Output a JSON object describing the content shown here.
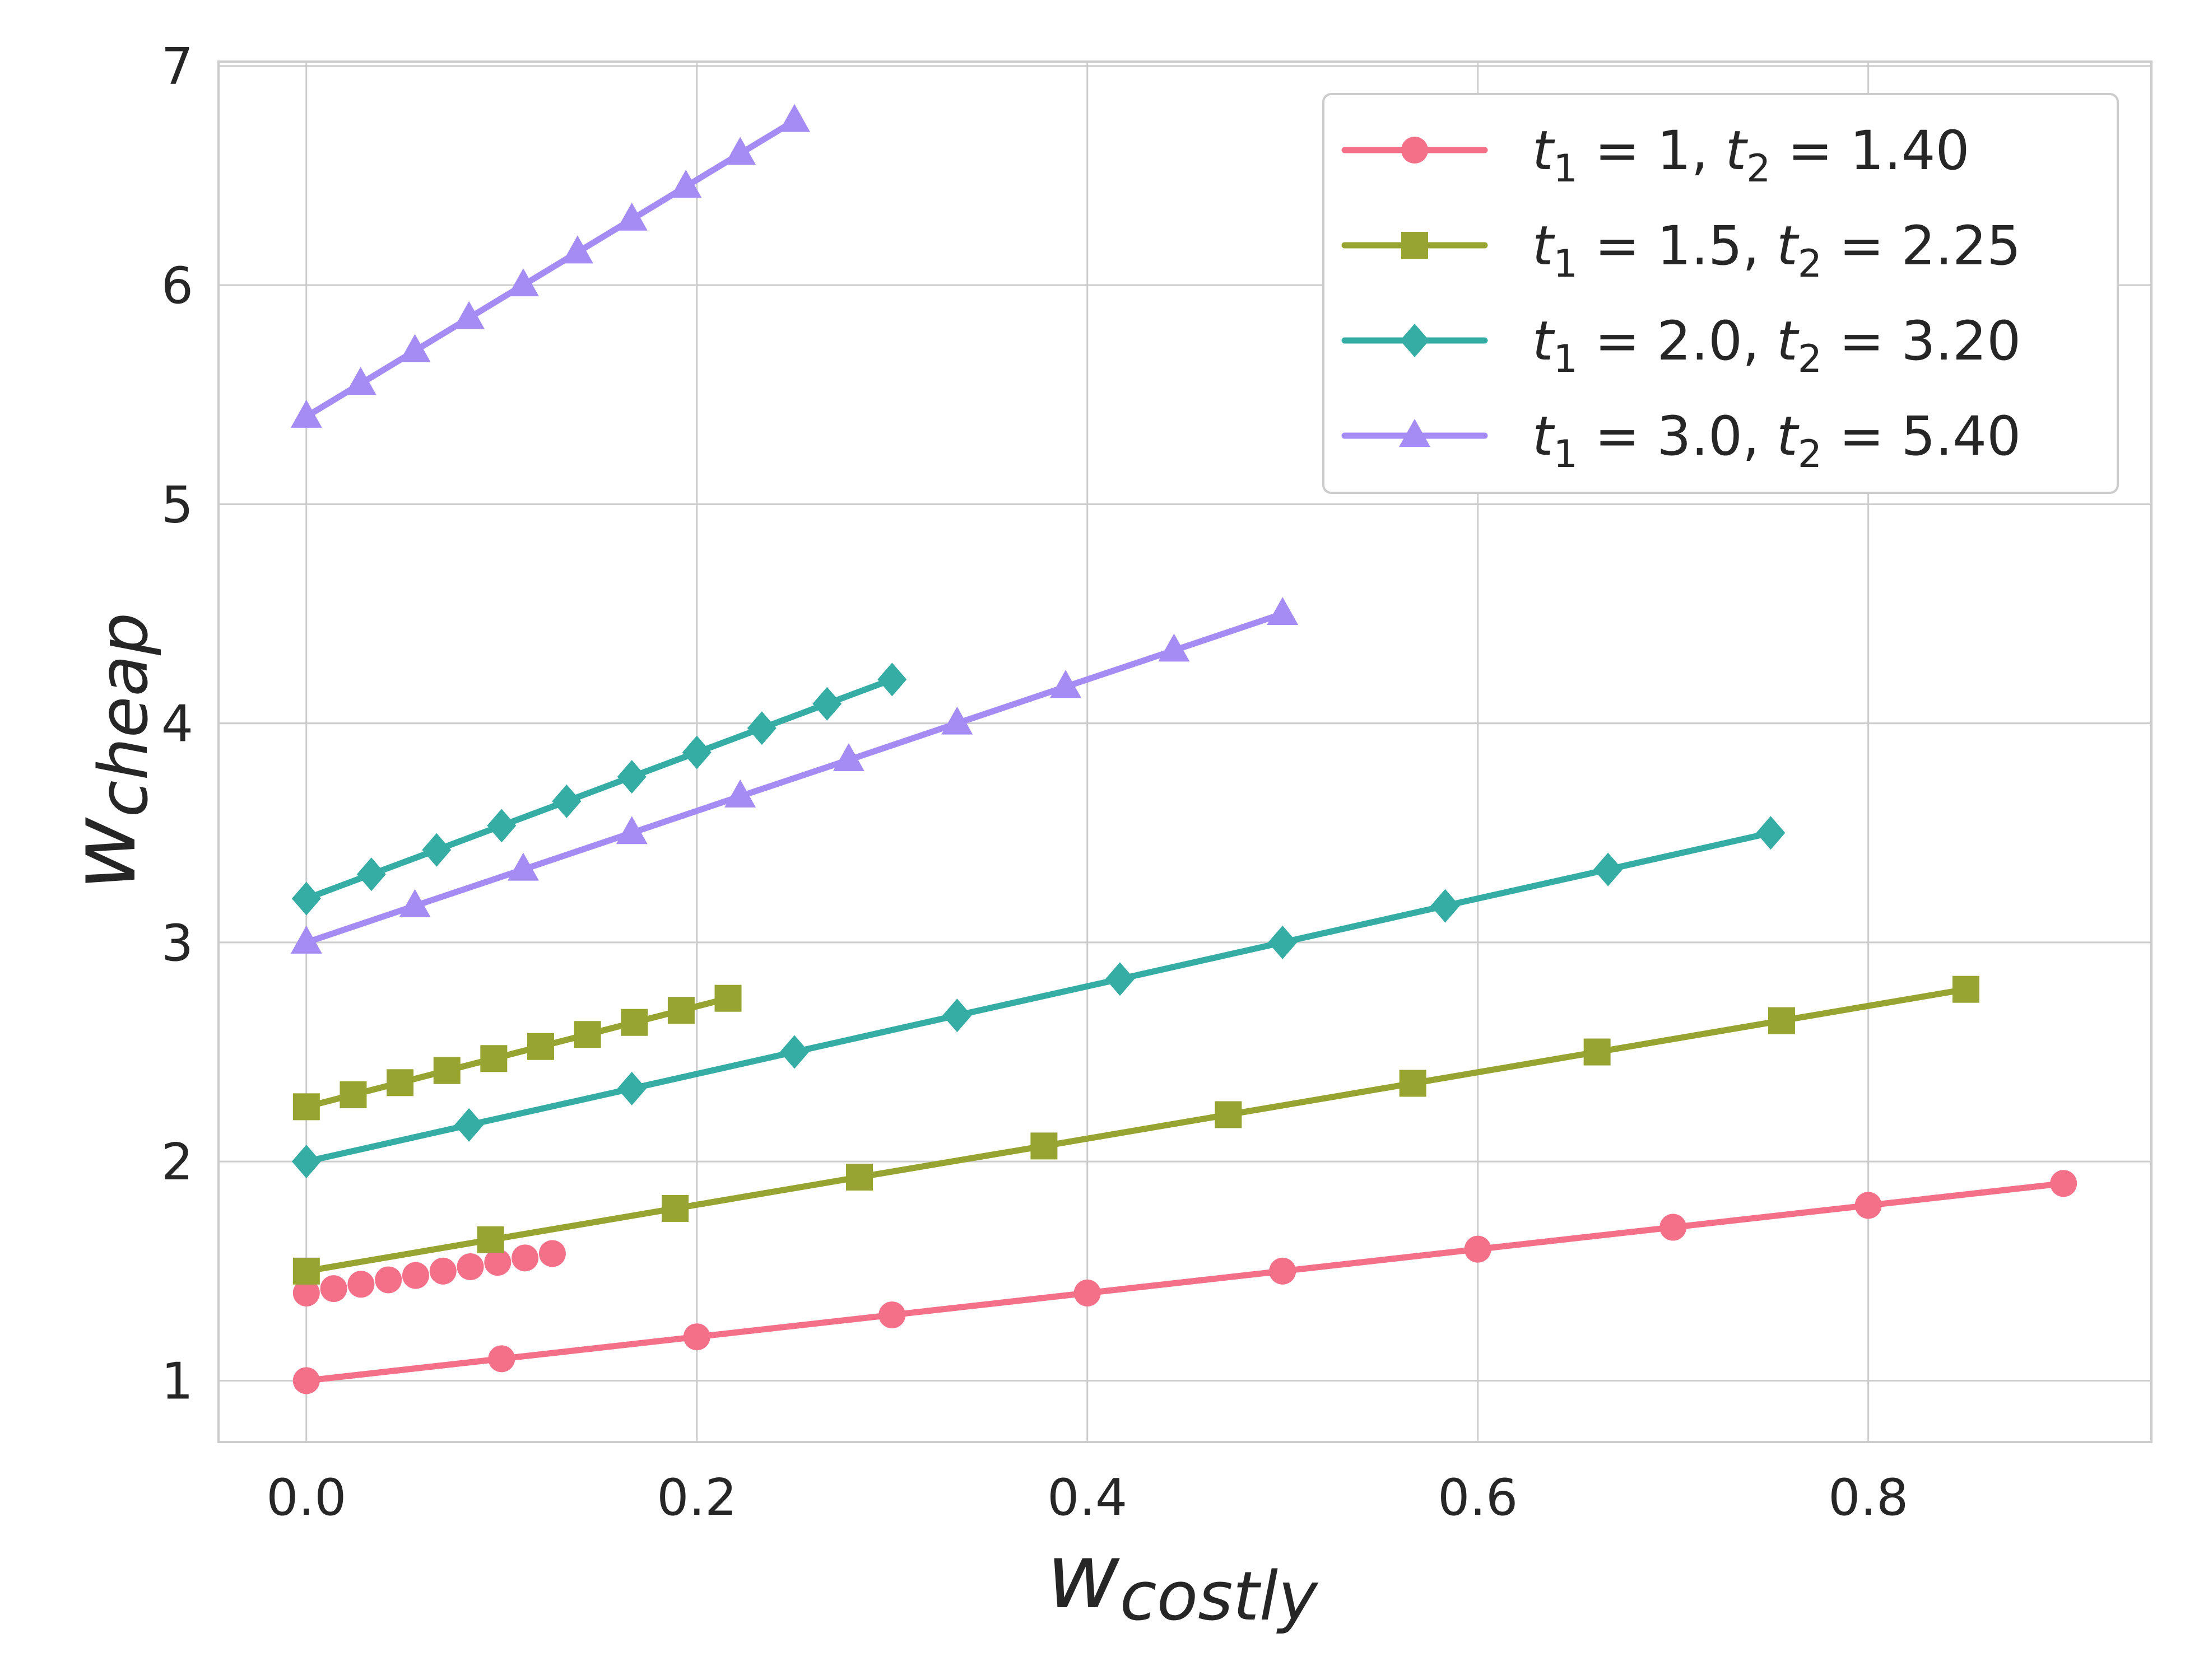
{
  "chart_data": {
    "type": "line",
    "xlabel_main": "w",
    "xlabel_sub": "costly",
    "ylabel_main": "w",
    "ylabel_sub": "cheap",
    "xlim": [
      -0.045,
      0.945
    ],
    "ylim": [
      0.72,
      7.02
    ],
    "x_ticks": [
      0.0,
      0.2,
      0.4,
      0.6,
      0.8
    ],
    "x_tick_labels": [
      "0.0",
      "0.2",
      "0.4",
      "0.6",
      "0.8"
    ],
    "y_ticks": [
      1,
      2,
      3,
      4,
      5,
      6,
      7
    ],
    "y_tick_labels": [
      "1",
      "2",
      "3",
      "4",
      "5",
      "6",
      "7"
    ],
    "grid": true,
    "legend_position": "top-right",
    "colors": {
      "pink": "#f37088",
      "olive": "#97a431",
      "teal": "#36ada4",
      "purple": "#a48cf4",
      "grid": "#cccccc",
      "text": "#262626"
    },
    "legend": [
      {
        "series_color": "pink",
        "marker": "circle",
        "label": {
          "t1": "1",
          "t2": "1.40"
        }
      },
      {
        "series_color": "olive",
        "marker": "square",
        "label": {
          "t1": "1.5",
          "t2": "2.25"
        }
      },
      {
        "series_color": "teal",
        "marker": "diamond",
        "label": {
          "t1": "2.0",
          "t2": "3.20"
        }
      },
      {
        "series_color": "purple",
        "marker": "triangle",
        "label": {
          "t1": "3.0",
          "t2": "5.40"
        }
      }
    ],
    "legend_label_parts": {
      "t": "t",
      "sub1": "1",
      "sub2": "2",
      "eq": " = ",
      "sep": ", "
    },
    "series": [
      {
        "name": "t1=1, t2=1.40 (full)",
        "color": "pink",
        "marker": "circle",
        "line": true,
        "x": [
          0.0,
          0.1,
          0.2,
          0.3,
          0.4,
          0.5,
          0.6,
          0.7,
          0.8,
          0.9
        ],
        "y": [
          1.0,
          1.1,
          1.2,
          1.3,
          1.4,
          1.5,
          1.6,
          1.7,
          1.8,
          1.9
        ]
      },
      {
        "name": "t1=1, t2=1.40 (short)",
        "color": "pink",
        "marker": "circle",
        "line": false,
        "x": [
          0.0,
          0.014,
          0.028,
          0.042,
          0.056,
          0.07,
          0.084,
          0.098,
          0.112,
          0.126
        ],
        "y": [
          1.4,
          1.42,
          1.44,
          1.46,
          1.48,
          1.5,
          1.52,
          1.54,
          1.56,
          1.58
        ]
      },
      {
        "name": "t1=1.5, t2=2.25 (full)",
        "color": "olive",
        "marker": "square",
        "line": true,
        "x": [
          0.0,
          0.0944,
          0.1889,
          0.2833,
          0.3778,
          0.4722,
          0.5667,
          0.6611,
          0.7556,
          0.85
        ],
        "y": [
          1.5,
          1.643,
          1.786,
          1.929,
          2.071,
          2.214,
          2.357,
          2.5,
          2.643,
          2.786
        ]
      },
      {
        "name": "t1=1.5, t2=2.25 (short)",
        "color": "olive",
        "marker": "square",
        "line": true,
        "x": [
          0.0,
          0.024,
          0.048,
          0.072,
          0.096,
          0.12,
          0.144,
          0.168,
          0.192,
          0.216
        ],
        "y": [
          2.25,
          2.305,
          2.36,
          2.415,
          2.47,
          2.525,
          2.58,
          2.635,
          2.69,
          2.745
        ]
      },
      {
        "name": "t1=2.0, t2=3.20 (full)",
        "color": "teal",
        "marker": "diamond",
        "line": true,
        "x": [
          0.0,
          0.0833,
          0.1667,
          0.25,
          0.3333,
          0.4167,
          0.5,
          0.5833,
          0.6667,
          0.75
        ],
        "y": [
          2.0,
          2.167,
          2.333,
          2.5,
          2.667,
          2.833,
          3.0,
          3.167,
          3.333,
          3.5
        ]
      },
      {
        "name": "t1=2.0, t2=3.20 (short)",
        "color": "teal",
        "marker": "diamond",
        "line": true,
        "x": [
          0.0,
          0.0333,
          0.0667,
          0.1,
          0.1333,
          0.1667,
          0.2,
          0.2333,
          0.2667,
          0.3
        ],
        "y": [
          3.2,
          3.311,
          3.422,
          3.533,
          3.644,
          3.756,
          3.867,
          3.978,
          4.089,
          4.2
        ]
      },
      {
        "name": "t1=3.0, t2=5.40 (full)",
        "color": "purple",
        "marker": "triangle",
        "line": true,
        "x": [
          0.0,
          0.0556,
          0.1111,
          0.1667,
          0.2222,
          0.2778,
          0.3333,
          0.3889,
          0.4444,
          0.5
        ],
        "y": [
          3.0,
          3.167,
          3.333,
          3.5,
          3.667,
          3.833,
          4.0,
          4.167,
          4.333,
          4.5
        ]
      },
      {
        "name": "t1=3.0, t2=5.40 (short)",
        "color": "purple",
        "marker": "triangle",
        "line": true,
        "x": [
          0.0,
          0.0278,
          0.0556,
          0.0833,
          0.1111,
          0.1389,
          0.1667,
          0.1944,
          0.2222,
          0.25
        ],
        "y": [
          5.4,
          5.55,
          5.7,
          5.85,
          6.0,
          6.15,
          6.3,
          6.45,
          6.6,
          6.75
        ]
      }
    ]
  }
}
